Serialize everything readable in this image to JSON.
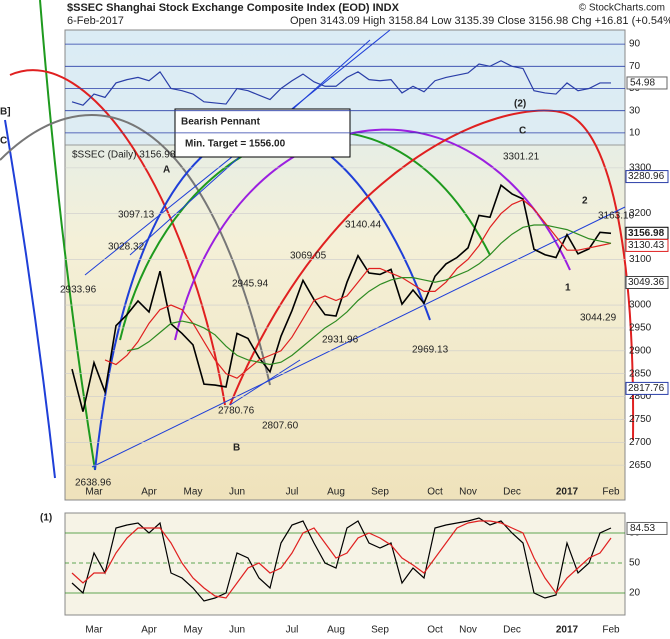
{
  "chart_data": [
    {
      "type": "line",
      "title": "$SSEC Shanghai Stock Exchange Composite Index (EOD) INDX",
      "subtitle": "6-Feb-2017",
      "info": "Open 3143.09  High 3158.84  Low 3135.39  Close 3156.98  Chg +16.81 (+0.54%)",
      "watermark": "© StockCharts.com",
      "categories": [
        null,
        null,
        "Mar",
        null,
        null,
        null,
        null,
        "Apr",
        null,
        null,
        null,
        "May",
        null,
        null,
        null,
        "Jun",
        null,
        null,
        null,
        null,
        "Jul",
        null,
        null,
        null,
        "Aug",
        null,
        null,
        null,
        "Sep",
        null,
        null,
        null,
        null,
        "Oct",
        null,
        null,
        "Nov",
        null,
        null,
        null,
        "Dec",
        null,
        null,
        null,
        null,
        "2017",
        null,
        null,
        null,
        "Feb"
      ],
      "series": [
        {
          "name": "$SSEC (Daily) 3156.98",
          "color": "#000000",
          "values": [
            2860,
            2767,
            2874,
            2810,
            2955,
            2979,
            3009,
            2985,
            3074,
            2959,
            2938,
            2913,
            2827,
            2825,
            2821,
            2938,
            2927,
            2885,
            2854,
            2932,
            2988,
            3054,
            3012,
            2979,
            2976,
            3050,
            3108,
            3070,
            3067,
            3078,
            3002,
            3033,
            3004,
            3063,
            3090,
            3104,
            3125,
            3196,
            3192,
            3262,
            3243,
            3232,
            3122,
            3110,
            3104,
            3154,
            3112,
            3123,
            3159,
            3157
          ]
        },
        {
          "color": "#e02020",
          "values": [
            null,
            null,
            null,
            2880,
            2870,
            2890,
            2920,
            2960,
            2990,
            3000,
            2990,
            2960,
            2920,
            2880,
            2850,
            2840,
            2860,
            2880,
            2890,
            2900,
            2930,
            2970,
            3010,
            3020,
            3010,
            3020,
            3050,
            3080,
            3080,
            3070,
            3060,
            3045,
            3030,
            3030,
            3050,
            3080,
            3100,
            3130,
            3170,
            3200,
            3220,
            3230,
            3210,
            3180,
            3150,
            3120,
            3120,
            3125,
            3130,
            3135
          ]
        },
        {
          "color": "#2e8b22",
          "values": [
            null,
            null,
            null,
            null,
            null,
            2900,
            2905,
            2920,
            2940,
            2960,
            2965,
            2960,
            2950,
            2935,
            2910,
            2890,
            2880,
            2875,
            2870,
            2875,
            2890,
            2910,
            2930,
            2950,
            2965,
            2985,
            3010,
            3030,
            3045,
            3055,
            3060,
            3060,
            3055,
            3050,
            3055,
            3065,
            3075,
            3090,
            3110,
            3135,
            3155,
            3170,
            3175,
            3175,
            3170,
            3165,
            3155,
            3145,
            3140,
            3135
          ]
        }
      ],
      "ylim": [
        2600,
        3350
      ],
      "yticks": [
        2650,
        2700,
        2750,
        2800,
        2850,
        2900,
        2950,
        3000,
        3100,
        3200,
        3300
      ],
      "value_markers": [
        {
          "value": 3280.96,
          "color": "#2a3ea8"
        },
        {
          "value": 3156.98,
          "color": "#000000"
        },
        {
          "value": 3130.43,
          "color": "#e02020"
        },
        {
          "value": 3049.36,
          "color": "#444444"
        },
        {
          "value": 2817.76,
          "color": "#2a3ea8"
        }
      ],
      "annotations": [
        {
          "text": "2933.96",
          "color": "#222222"
        },
        {
          "text": "3028.32",
          "color": "#222222"
        },
        {
          "text": "3097.13",
          "color": "#222222"
        },
        {
          "text": "2945.94",
          "color": "#222222"
        },
        {
          "text": "2780.76",
          "color": "#222222"
        },
        {
          "text": "2807.60",
          "color": "#222222"
        },
        {
          "text": "3069.05",
          "color": "#222222"
        },
        {
          "text": "2931.96",
          "color": "#222222"
        },
        {
          "text": "3140.44",
          "color": "#222222"
        },
        {
          "text": "2969.13",
          "color": "#222222"
        },
        {
          "text": "3301.21",
          "color": "#222222"
        },
        {
          "text": "3163.10",
          "color": "#222222"
        },
        {
          "text": "3044.29",
          "color": "#222222"
        },
        {
          "text": "2638.96",
          "color": "#222222"
        },
        {
          "text": "A",
          "color": "#8a1fd8"
        },
        {
          "text": "B",
          "color": "#8a1fd8"
        },
        {
          "text": "C",
          "color": "#8a1fd8"
        },
        {
          "text": "(2)",
          "color": "#000000"
        },
        {
          "text": "1",
          "color": "#8a1fd8"
        },
        {
          "text": "2",
          "color": "#8a1fd8"
        },
        {
          "text": "B]",
          "color": "#1f3fd8"
        },
        {
          "text": "C",
          "color": "#000000"
        },
        {
          "text": "Bearish Pennant",
          "color": "#000000"
        },
        {
          "text": "Min. Target = 1556.00",
          "color": "#000000"
        }
      ]
    },
    {
      "type": "line",
      "series": [
        {
          "color": "#2a3ea8",
          "values": [
            38,
            35,
            45,
            42,
            55,
            58,
            60,
            57,
            65,
            50,
            48,
            45,
            38,
            37,
            36,
            50,
            48,
            44,
            40,
            50,
            57,
            63,
            56,
            52,
            52,
            60,
            65,
            58,
            57,
            58,
            46,
            52,
            47,
            57,
            60,
            62,
            64,
            72,
            70,
            75,
            70,
            68,
            48,
            46,
            45,
            55,
            48,
            50,
            55,
            55
          ]
        }
      ],
      "ylim": [
        0,
        100
      ],
      "yticks": [
        10,
        30,
        50,
        70,
        90
      ],
      "last_value": 54.98
    },
    {
      "type": "line",
      "label": "(1)",
      "categories": [
        null,
        null,
        "Mar",
        null,
        null,
        null,
        null,
        "Apr",
        null,
        null,
        null,
        "May",
        null,
        null,
        null,
        "Jun",
        null,
        null,
        null,
        null,
        "Jul",
        null,
        null,
        null,
        "Aug",
        null,
        null,
        null,
        "Sep",
        null,
        null,
        null,
        null,
        "Oct",
        null,
        null,
        "Nov",
        null,
        null,
        null,
        "Dec",
        null,
        null,
        null,
        null,
        "2017",
        null,
        null,
        null,
        "Feb"
      ],
      "series": [
        {
          "color": "#000000",
          "values": [
            30,
            20,
            60,
            40,
            85,
            88,
            90,
            80,
            90,
            40,
            35,
            25,
            12,
            15,
            20,
            60,
            55,
            35,
            25,
            70,
            88,
            92,
            70,
            50,
            45,
            85,
            92,
            70,
            65,
            70,
            30,
            45,
            35,
            85,
            88,
            90,
            92,
            95,
            88,
            92,
            80,
            70,
            20,
            15,
            18,
            70,
            40,
            50,
            80,
            85
          ]
        },
        {
          "color": "#e02020",
          "values": [
            40,
            30,
            40,
            40,
            60,
            75,
            85,
            85,
            85,
            70,
            50,
            35,
            25,
            17,
            15,
            30,
            45,
            50,
            40,
            45,
            60,
            80,
            85,
            70,
            55,
            60,
            75,
            80,
            75,
            68,
            55,
            48,
            40,
            55,
            70,
            85,
            90,
            92,
            92,
            90,
            85,
            80,
            55,
            35,
            20,
            35,
            45,
            55,
            60,
            75
          ]
        }
      ],
      "ylim": [
        0,
        100
      ],
      "yticks": [
        20,
        50,
        80
      ],
      "last_value": 84.53
    }
  ]
}
